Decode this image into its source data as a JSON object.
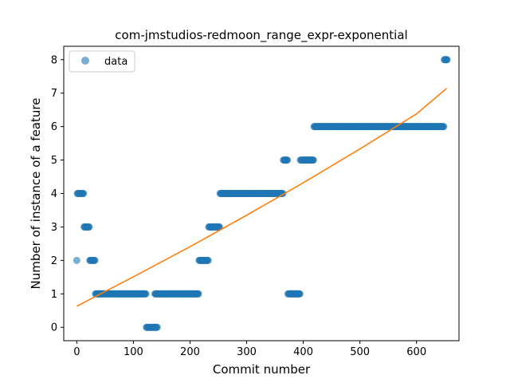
{
  "chart_data": {
    "type": "scatter",
    "title": "com-jmstudios-redmoon_range_expr-exponential",
    "xlabel": "Commit number",
    "ylabel": "Number of instance of a feature",
    "xlim": [
      -23,
      675
    ],
    "ylim": [
      -0.4,
      8.4
    ],
    "xticks": [
      0,
      100,
      200,
      300,
      400,
      500,
      600
    ],
    "yticks": [
      0,
      1,
      2,
      3,
      4,
      5,
      6,
      7,
      8
    ],
    "grid": false,
    "legend": {
      "position": "top-left",
      "entries": [
        "data"
      ]
    },
    "series": [
      {
        "name": "data",
        "kind": "scatter",
        "color": "#1f77b4",
        "segments": [
          {
            "x_start": 0,
            "x_end": 0,
            "y": 2
          },
          {
            "x_start": 1,
            "x_end": 12,
            "y": 4
          },
          {
            "x_start": 13,
            "x_end": 22,
            "y": 3
          },
          {
            "x_start": 23,
            "x_end": 32,
            "y": 2
          },
          {
            "x_start": 33,
            "x_end": 122,
            "y": 1
          },
          {
            "x_start": 123,
            "x_end": 142,
            "y": 0
          },
          {
            "x_start": 138,
            "x_end": 215,
            "y": 1
          },
          {
            "x_start": 216,
            "x_end": 232,
            "y": 2
          },
          {
            "x_start": 233,
            "x_end": 252,
            "y": 3
          },
          {
            "x_start": 253,
            "x_end": 364,
            "y": 4
          },
          {
            "x_start": 365,
            "x_end": 372,
            "y": 5
          },
          {
            "x_start": 373,
            "x_end": 394,
            "y": 1
          },
          {
            "x_start": 395,
            "x_end": 418,
            "y": 5
          },
          {
            "x_start": 419,
            "x_end": 648,
            "y": 6
          },
          {
            "x_start": 649,
            "x_end": 654,
            "y": 8
          }
        ]
      },
      {
        "name": "",
        "kind": "line",
        "color": "#ff7f0e",
        "x": [
          0,
          100,
          200,
          300,
          400,
          500,
          600,
          653
        ],
        "y": [
          0.63,
          1.51,
          2.41,
          3.35,
          4.32,
          5.33,
          6.38,
          7.14
        ]
      }
    ]
  }
}
